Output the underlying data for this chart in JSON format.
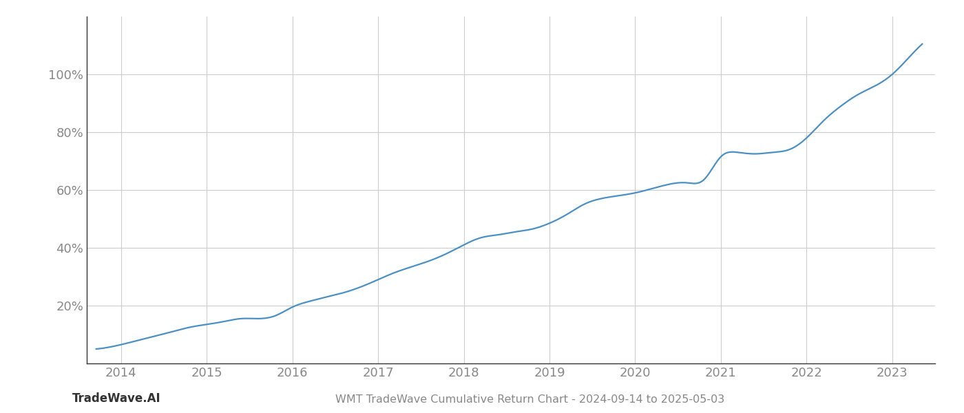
{
  "title": "WMT TradeWave Cumulative Return Chart - 2024-09-14 to 2025-05-03",
  "watermark": "TradeWave.AI",
  "line_color": "#4a90c4",
  "background_color": "#ffffff",
  "grid_color": "#cccccc",
  "axis_color": "#888888",
  "tick_color": "#888888",
  "x_years": [
    2014,
    2015,
    2016,
    2017,
    2018,
    2019,
    2020,
    2021,
    2022,
    2023
  ],
  "x_data": [
    2013.71,
    2014.0,
    2014.2,
    2014.4,
    2014.6,
    2014.8,
    2015.0,
    2015.2,
    2015.4,
    2015.6,
    2015.8,
    2016.0,
    2016.2,
    2016.4,
    2016.6,
    2016.8,
    2017.0,
    2017.2,
    2017.4,
    2017.6,
    2017.8,
    2018.0,
    2018.2,
    2018.4,
    2018.6,
    2018.8,
    2019.0,
    2019.2,
    2019.4,
    2019.6,
    2019.8,
    2020.0,
    2020.2,
    2020.4,
    2020.6,
    2020.8,
    2021.0,
    2021.2,
    2021.4,
    2021.6,
    2021.8,
    2022.0,
    2022.2,
    2022.4,
    2022.6,
    2022.8,
    2023.0,
    2023.2,
    2023.35
  ],
  "y_data": [
    5.0,
    6.5,
    8.0,
    9.5,
    11.0,
    12.5,
    13.5,
    14.5,
    15.5,
    15.5,
    16.5,
    19.5,
    21.5,
    23.0,
    24.5,
    26.5,
    29.0,
    31.5,
    33.5,
    35.5,
    38.0,
    41.0,
    43.5,
    44.5,
    45.5,
    46.5,
    48.5,
    51.5,
    55.0,
    57.0,
    58.0,
    59.0,
    60.5,
    62.0,
    62.5,
    63.5,
    71.5,
    73.0,
    72.5,
    73.0,
    74.0,
    78.0,
    84.0,
    89.0,
    93.0,
    96.0,
    100.0,
    106.0,
    110.5
  ],
  "yticks": [
    20,
    40,
    60,
    80,
    100
  ],
  "ylim": [
    0,
    120
  ],
  "xlim": [
    2013.6,
    2023.5
  ],
  "title_fontsize": 11.5,
  "watermark_fontsize": 12,
  "tick_fontsize": 13,
  "line_width": 1.6
}
